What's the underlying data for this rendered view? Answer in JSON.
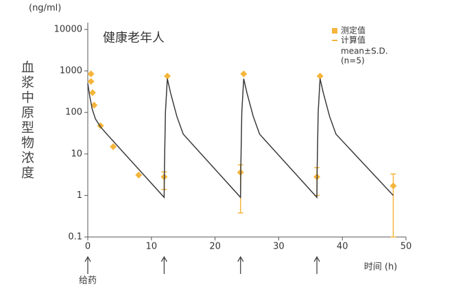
{
  "chart_data": {
    "type": "line",
    "title": "健康老年人",
    "y_unit": "(ng/ml)",
    "ylabel": "血浆中原型物浓度",
    "xlabel": "时间 (h)",
    "log_y": true,
    "xlim": [
      0,
      50
    ],
    "ylim": [
      0.1,
      10000
    ],
    "xticks": [
      0,
      10,
      20,
      30,
      40,
      50
    ],
    "yticks": [
      0.1,
      1,
      10,
      100,
      1000,
      10000
    ],
    "dose_label": "给药",
    "dose_times": [
      0,
      12,
      24,
      36
    ],
    "legend_notes": [
      "mean±S.D.",
      "(n=5)"
    ],
    "series": [
      {
        "name": "测定值",
        "kind": "points",
        "color": "#f5b53c",
        "x": [
          0.5,
          0.5,
          0.75,
          1,
          2,
          4,
          8,
          12,
          12.5,
          24,
          24.5,
          36,
          36.5,
          48
        ],
        "values": [
          850,
          560,
          300,
          150,
          48,
          15,
          3.1,
          2.8,
          750,
          3.6,
          850,
          2.8,
          750,
          1.7
        ],
        "error_low": [
          null,
          null,
          null,
          null,
          null,
          null,
          null,
          1.4,
          null,
          0.38,
          null,
          1,
          null,
          0.1
        ],
        "error_high": [
          null,
          null,
          null,
          null,
          null,
          null,
          null,
          3.7,
          null,
          5.5,
          null,
          4.7,
          null,
          3.3
        ]
      },
      {
        "name": "计算值",
        "kind": "line",
        "color": "#3a3a3a",
        "x": [
          0,
          0.3,
          0.7,
          1.2,
          2,
          3,
          12,
          12.05,
          12.2,
          12.5,
          13,
          14,
          15,
          24,
          24.05,
          24.2,
          24.5,
          25,
          26,
          27,
          36,
          36.05,
          36.2,
          36.5,
          37,
          38,
          39,
          48
        ],
        "values": [
          500,
          250,
          120,
          70,
          45,
          30,
          0.9,
          5,
          100,
          650,
          300,
          80,
          30,
          0.9,
          5,
          100,
          650,
          300,
          80,
          30,
          0.9,
          5,
          100,
          650,
          300,
          80,
          30,
          1
        ]
      }
    ]
  }
}
